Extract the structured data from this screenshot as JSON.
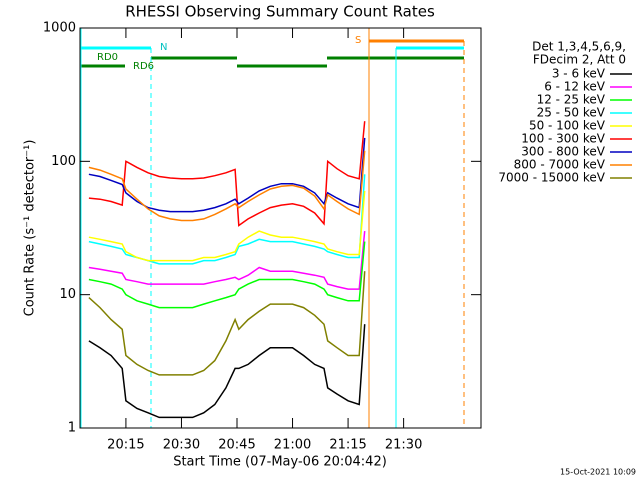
{
  "chart_data": {
    "type": "line",
    "title": "RHESSI Observing Summary Count Rates",
    "x_label": "Start Time (07-May-06 20:04:42)",
    "y_label": "Count Rate (s⁻¹ detector⁻¹)",
    "legend_header": [
      "Det 1,3,4,5,6,9,",
      "FDecim 2, Att 0"
    ],
    "annotations": [
      "N",
      "RD0",
      "RD6",
      "S"
    ],
    "footer": "15-Oct-2021 10:09",
    "log_y": true,
    "xlim": [
      2.6,
      110.9
    ],
    "xticks": [
      {
        "value": 15,
        "label": "20:15"
      },
      {
        "value": 30,
        "label": "20:30"
      },
      {
        "value": 45,
        "label": "20:45"
      },
      {
        "value": 60,
        "label": "21:00"
      },
      {
        "value": 75,
        "label": "21:15"
      },
      {
        "value": 90,
        "label": "21:30"
      }
    ],
    "ylim": [
      1,
      1000
    ],
    "yticks": [
      1,
      10,
      100,
      1000
    ],
    "x": [
      5,
      8,
      11,
      14,
      15,
      18,
      21,
      24,
      27,
      30,
      33,
      36,
      39,
      42,
      44.5,
      45.5,
      48,
      51,
      54,
      57,
      60,
      63,
      66,
      68.5,
      69.5,
      72,
      75,
      78,
      79.5
    ],
    "series": [
      {
        "name": "3 - 6 keV",
        "color": "#000000",
        "values": [
          4.5,
          4,
          3.5,
          2.8,
          1.6,
          1.4,
          1.3,
          1.2,
          1.2,
          1.2,
          1.2,
          1.3,
          1.5,
          2,
          2.8,
          2.8,
          3,
          3.5,
          4,
          4,
          4,
          3.5,
          3,
          2.8,
          2,
          1.8,
          1.6,
          1.5,
          6
        ]
      },
      {
        "name": "6 - 12 keV",
        "color": "#ff00ff",
        "values": [
          16,
          15.5,
          15,
          14.5,
          13,
          12.5,
          12,
          12,
          12,
          12,
          12,
          12,
          12.5,
          13,
          13.5,
          13,
          14,
          16,
          15,
          15,
          15,
          14.5,
          14,
          13.5,
          12,
          11.5,
          11,
          11,
          30
        ]
      },
      {
        "name": "12 - 25 keV",
        "color": "#00ff00",
        "values": [
          13,
          12.5,
          12,
          11,
          10,
          9,
          8.5,
          8,
          8,
          8,
          8,
          8.5,
          9,
          9.5,
          10,
          11,
          12,
          13,
          13,
          13,
          13,
          12.5,
          12,
          11,
          10,
          9.5,
          9,
          9,
          25
        ]
      },
      {
        "name": "25 - 50 keV",
        "color": "#00ffff",
        "values": [
          25,
          24,
          23,
          22,
          20,
          19,
          18,
          17,
          17,
          17,
          17,
          18,
          18,
          19,
          20,
          23,
          24,
          26,
          25,
          25,
          25,
          24,
          23,
          22,
          21,
          20,
          19,
          19,
          80
        ]
      },
      {
        "name": "50 - 100 keV",
        "color": "#ffff00",
        "values": [
          27,
          26,
          25,
          24,
          21,
          19,
          18,
          18,
          18,
          18,
          18,
          19,
          19,
          20,
          21,
          24,
          27,
          30,
          28,
          27,
          27,
          26,
          25,
          24,
          22,
          21,
          20,
          20,
          60
        ]
      },
      {
        "name": "100 - 300 keV",
        "color": "#ff0000",
        "values": [
          53,
          52,
          50,
          47,
          100,
          90,
          82,
          77,
          75,
          74,
          74,
          75,
          78,
          82,
          87,
          33,
          37,
          41,
          45,
          47,
          48,
          46,
          41,
          34,
          100,
          88,
          78,
          74,
          200
        ]
      },
      {
        "name": "300 - 800 keV",
        "color": "#0000c0",
        "values": [
          80,
          77,
          72,
          67,
          58,
          50,
          45,
          43,
          42,
          42,
          42,
          43,
          45,
          48,
          52,
          48,
          53,
          60,
          65,
          68,
          68,
          65,
          58,
          48,
          58,
          53,
          48,
          45,
          150
        ]
      },
      {
        "name": "800 - 7000 keV",
        "color": "#ff8000",
        "values": [
          90,
          86,
          80,
          74,
          62,
          52,
          44,
          39,
          37,
          36,
          36,
          37,
          40,
          44,
          48,
          45,
          50,
          56,
          62,
          65,
          66,
          63,
          55,
          44,
          56,
          50,
          44,
          40,
          120
        ]
      },
      {
        "name": "7000 - 15000 keV",
        "color": "#808000",
        "values": [
          9.5,
          8,
          6.5,
          5.5,
          3.5,
          3,
          2.7,
          2.5,
          2.5,
          2.5,
          2.5,
          2.7,
          3.2,
          4.5,
          6.5,
          5.5,
          6.5,
          7.5,
          8.5,
          8.5,
          8.5,
          8,
          7,
          6,
          4.5,
          4,
          3.5,
          3.5,
          15
        ]
      }
    ]
  }
}
